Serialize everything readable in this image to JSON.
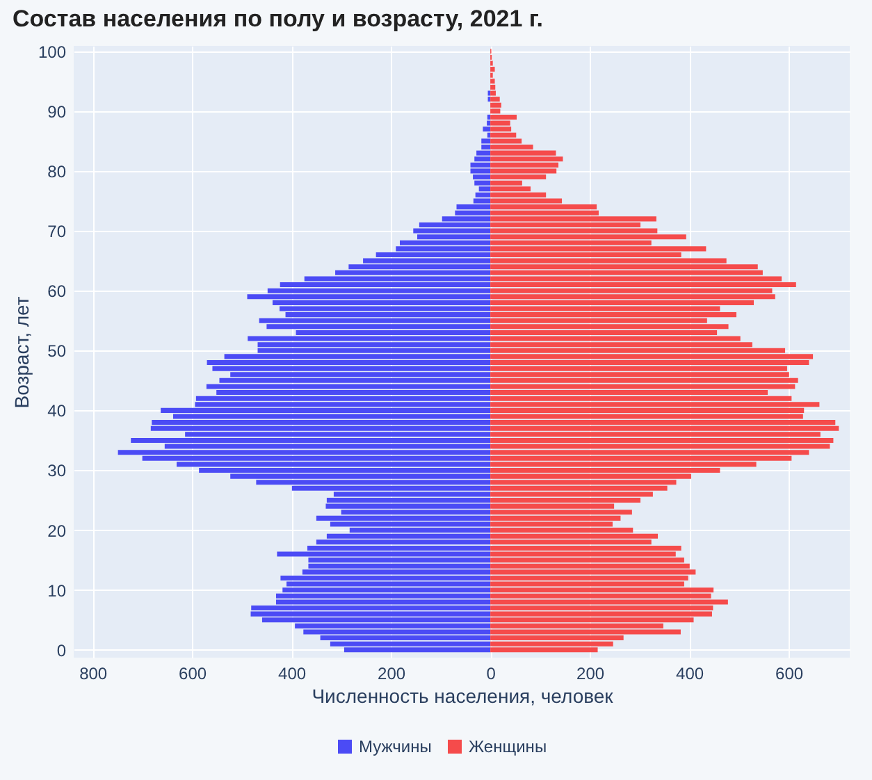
{
  "chart_data": {
    "type": "bar",
    "orientation": "horizontal",
    "title": "Состав населения по полу и возрасту, 2021 г.",
    "xlabel": "Численность населения, человек",
    "ylabel": "Возраст, лет",
    "x": [
      0,
      1,
      2,
      3,
      4,
      5,
      6,
      7,
      8,
      9,
      10,
      11,
      12,
      13,
      14,
      15,
      16,
      17,
      18,
      19,
      20,
      21,
      22,
      23,
      24,
      25,
      26,
      27,
      28,
      29,
      30,
      31,
      32,
      33,
      34,
      35,
      36,
      37,
      38,
      39,
      40,
      41,
      42,
      43,
      44,
      45,
      46,
      47,
      48,
      49,
      50,
      51,
      52,
      53,
      54,
      55,
      56,
      57,
      58,
      59,
      60,
      61,
      62,
      63,
      64,
      65,
      66,
      67,
      68,
      69,
      70,
      71,
      72,
      73,
      74,
      75,
      76,
      77,
      78,
      79,
      80,
      81,
      82,
      83,
      84,
      85,
      86,
      87,
      88,
      89,
      90,
      91,
      92,
      93,
      94,
      95,
      96,
      97,
      98,
      99,
      100
    ],
    "series": [
      {
        "name": "Мужчины",
        "color": "#4b4bf5",
        "values": [
          -294,
          -322,
          -342,
          -376,
          -393,
          -459,
          -482,
          -481,
          -431,
          -431,
          -418,
          -410,
          -422,
          -378,
          -366,
          -366,
          -429,
          -368,
          -350,
          -329,
          -283,
          -322,
          -350,
          -300,
          -331,
          -329,
          -315,
          -399,
          -471,
          -523,
          -586,
          -631,
          -700,
          -749,
          -655,
          -723,
          -614,
          -683,
          -681,
          -638,
          -663,
          -594,
          -592,
          -551,
          -571,
          -545,
          -523,
          -559,
          -570,
          -535,
          -468,
          -468,
          -488,
          -391,
          -450,
          -465,
          -412,
          -424,
          -438,
          -489,
          -448,
          -423,
          -374,
          -312,
          -285,
          -256,
          -230,
          -190,
          -182,
          -147,
          -155,
          -143,
          -97,
          -71,
          -68,
          -34,
          -30,
          -23,
          -32,
          -35,
          -40,
          -40,
          -32,
          -28,
          -18,
          -18,
          -6,
          -15,
          -7,
          -6,
          0,
          0,
          -5,
          -5,
          0,
          0,
          0,
          0,
          0,
          0,
          0
        ]
      },
      {
        "name": "Женщины",
        "color": "#f54b4b",
        "values": [
          216,
          247,
          268,
          383,
          348,
          409,
          446,
          448,
          478,
          444,
          449,
          390,
          398,
          413,
          401,
          390,
          373,
          384,
          324,
          337,
          287,
          246,
          262,
          285,
          249,
          302,
          327,
          356,
          374,
          404,
          462,
          535,
          606,
          641,
          683,
          690,
          664,
          701,
          694,
          629,
          631,
          662,
          606,
          558,
          613,
          619,
          601,
          597,
          641,
          649,
          593,
          527,
          503,
          456,
          479,
          436,
          495,
          462,
          530,
          573,
          567,
          615,
          586,
          548,
          538,
          475,
          384,
          434,
          324,
          394,
          336,
          302,
          334,
          218,
          214,
          144,
          112,
          81,
          64,
          112,
          133,
          137,
          146,
          132,
          86,
          63,
          52,
          42,
          40,
          53,
          20,
          22,
          19,
          11,
          10,
          9,
          5,
          9,
          5,
          3,
          2
        ]
      }
    ],
    "xlim": [
      -838,
      723
    ],
    "xticks": [
      {
        "value": -800,
        "label": "800"
      },
      {
        "value": -600,
        "label": "600"
      },
      {
        "value": -400,
        "label": "400"
      },
      {
        "value": -200,
        "label": "200"
      },
      0,
      200,
      400,
      600
    ],
    "ylim": [
      -1.3,
      100.9
    ],
    "yticks": [
      0,
      10,
      20,
      30,
      40,
      50,
      60,
      70,
      80,
      90,
      100
    ],
    "grid": true,
    "legend": "bottom",
    "stacked": true
  }
}
